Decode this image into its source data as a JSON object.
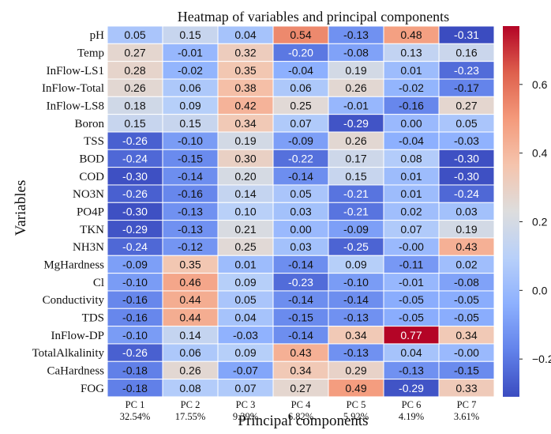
{
  "chart_data": {
    "type": "heatmap",
    "title": "Heatmap of variables and principal components",
    "xlabel": "Principal components",
    "ylabel": "Variables",
    "columns": [
      "PC 1",
      "PC 2",
      "PC 3",
      "PC 4",
      "PC 5",
      "PC 6",
      "PC 7"
    ],
    "column_variance": [
      "32.54%",
      "17.55%",
      "9.39%",
      "6.82%",
      "5.92%",
      "4.19%",
      "3.61%"
    ],
    "rows": [
      "pH",
      "Temp",
      "InFlow-LS1",
      "InFlow-Total",
      "InFlow-LS8",
      "Boron",
      "TSS",
      "BOD",
      "COD",
      "NO3N",
      "PO4P",
      "TKN",
      "NH3N",
      "MgHardness",
      "Cl",
      "Conductivity",
      "TDS",
      "InFlow-DP",
      "TotalAlkalinity",
      "CaHardness",
      "FOG"
    ],
    "values": [
      [
        0.05,
        0.15,
        0.04,
        0.54,
        -0.13,
        0.48,
        -0.31
      ],
      [
        0.27,
        -0.01,
        0.32,
        -0.2,
        -0.08,
        0.13,
        0.16
      ],
      [
        0.28,
        -0.02,
        0.35,
        -0.04,
        0.19,
        0.01,
        -0.23
      ],
      [
        0.26,
        0.06,
        0.38,
        0.06,
        0.26,
        -0.02,
        -0.17
      ],
      [
        0.18,
        0.09,
        0.42,
        0.25,
        -0.01,
        -0.16,
        0.27
      ],
      [
        0.15,
        0.15,
        0.34,
        0.07,
        -0.29,
        0.0,
        0.05
      ],
      [
        -0.26,
        -0.1,
        0.19,
        -0.09,
        0.26,
        -0.04,
        -0.03
      ],
      [
        -0.24,
        -0.15,
        0.3,
        -0.22,
        0.17,
        0.08,
        -0.3
      ],
      [
        -0.3,
        -0.14,
        0.2,
        -0.14,
        0.15,
        0.01,
        -0.3
      ],
      [
        -0.26,
        -0.16,
        0.14,
        0.05,
        -0.21,
        0.01,
        -0.24
      ],
      [
        -0.3,
        -0.13,
        0.1,
        0.03,
        -0.21,
        0.02,
        0.03
      ],
      [
        -0.29,
        -0.13,
        0.21,
        0.0,
        -0.09,
        0.07,
        0.19
      ],
      [
        -0.24,
        -0.12,
        0.25,
        0.03,
        -0.25,
        -0.0,
        0.43
      ],
      [
        -0.09,
        0.35,
        0.01,
        -0.14,
        0.09,
        -0.11,
        0.02
      ],
      [
        -0.1,
        0.46,
        0.09,
        -0.23,
        -0.1,
        -0.01,
        -0.08
      ],
      [
        -0.16,
        0.44,
        0.05,
        -0.14,
        -0.14,
        -0.05,
        -0.05
      ],
      [
        -0.16,
        0.44,
        0.04,
        -0.15,
        -0.13,
        -0.05,
        -0.05
      ],
      [
        -0.1,
        0.14,
        -0.03,
        -0.14,
        0.34,
        0.77,
        0.34
      ],
      [
        -0.26,
        0.06,
        0.09,
        0.43,
        -0.13,
        0.04,
        -0.0
      ],
      [
        -0.18,
        0.26,
        -0.07,
        0.34,
        0.29,
        -0.13,
        -0.15
      ],
      [
        -0.18,
        0.08,
        0.07,
        0.27,
        0.49,
        -0.29,
        0.33
      ]
    ],
    "value_labels": [
      [
        "0.05",
        "0.15",
        "0.04",
        "0.54",
        "-0.13",
        "0.48",
        "-0.31"
      ],
      [
        "0.27",
        "-0.01",
        "0.32",
        "-0.20",
        "-0.08",
        "0.13",
        "0.16"
      ],
      [
        "0.28",
        "-0.02",
        "0.35",
        "-0.04",
        "0.19",
        "0.01",
        "-0.23"
      ],
      [
        "0.26",
        "0.06",
        "0.38",
        "0.06",
        "0.26",
        "-0.02",
        "-0.17"
      ],
      [
        "0.18",
        "0.09",
        "0.42",
        "0.25",
        "-0.01",
        "-0.16",
        "0.27"
      ],
      [
        "0.15",
        "0.15",
        "0.34",
        "0.07",
        "-0.29",
        "0.00",
        "0.05"
      ],
      [
        "-0.26",
        "-0.10",
        "0.19",
        "-0.09",
        "0.26",
        "-0.04",
        "-0.03"
      ],
      [
        "-0.24",
        "-0.15",
        "0.30",
        "-0.22",
        "0.17",
        "0.08",
        "-0.30"
      ],
      [
        "-0.30",
        "-0.14",
        "0.20",
        "-0.14",
        "0.15",
        "0.01",
        "-0.30"
      ],
      [
        "-0.26",
        "-0.16",
        "0.14",
        "0.05",
        "-0.21",
        "0.01",
        "-0.24"
      ],
      [
        "-0.30",
        "-0.13",
        "0.10",
        "0.03",
        "-0.21",
        "0.02",
        "0.03"
      ],
      [
        "-0.29",
        "-0.13",
        "0.21",
        "0.00",
        "-0.09",
        "0.07",
        "0.19"
      ],
      [
        "-0.24",
        "-0.12",
        "0.25",
        "0.03",
        "-0.25",
        "-0.00",
        "0.43"
      ],
      [
        "-0.09",
        "0.35",
        "0.01",
        "-0.14",
        "0.09",
        "-0.11",
        "0.02"
      ],
      [
        "-0.10",
        "0.46",
        "0.09",
        "-0.23",
        "-0.10",
        "-0.01",
        "-0.08"
      ],
      [
        "-0.16",
        "0.44",
        "0.05",
        "-0.14",
        "-0.14",
        "-0.05",
        "-0.05"
      ],
      [
        "-0.16",
        "0.44",
        "0.04",
        "-0.15",
        "-0.13",
        "-0.05",
        "-0.05"
      ],
      [
        "-0.10",
        "0.14",
        "-0.03",
        "-0.14",
        "0.34",
        "0.77",
        "0.34"
      ],
      [
        "-0.26",
        "0.06",
        "0.09",
        "0.43",
        "-0.13",
        "0.04",
        "-0.00"
      ],
      [
        "-0.18",
        "0.26",
        "-0.07",
        "0.34",
        "0.29",
        "-0.13",
        "-0.15"
      ],
      [
        "-0.18",
        "0.08",
        "0.07",
        "0.27",
        "0.49",
        "-0.29",
        "0.33"
      ]
    ],
    "colormap": "coolwarm",
    "colorbar": {
      "vmin": -0.31,
      "vmax": 0.77,
      "ticks": [
        -0.2,
        0.0,
        0.2,
        0.4,
        0.6
      ],
      "tick_labels": [
        "−0.2",
        "0.0",
        "0.2",
        "0.4",
        "0.6"
      ]
    },
    "grid": true
  },
  "colors": {
    "cold": "#3b4cc0",
    "neutral": "#dddddd",
    "hot": "#b40426",
    "cell_border": "#ffffff",
    "text_dark": "#111111",
    "text_light": "#ffffff"
  }
}
